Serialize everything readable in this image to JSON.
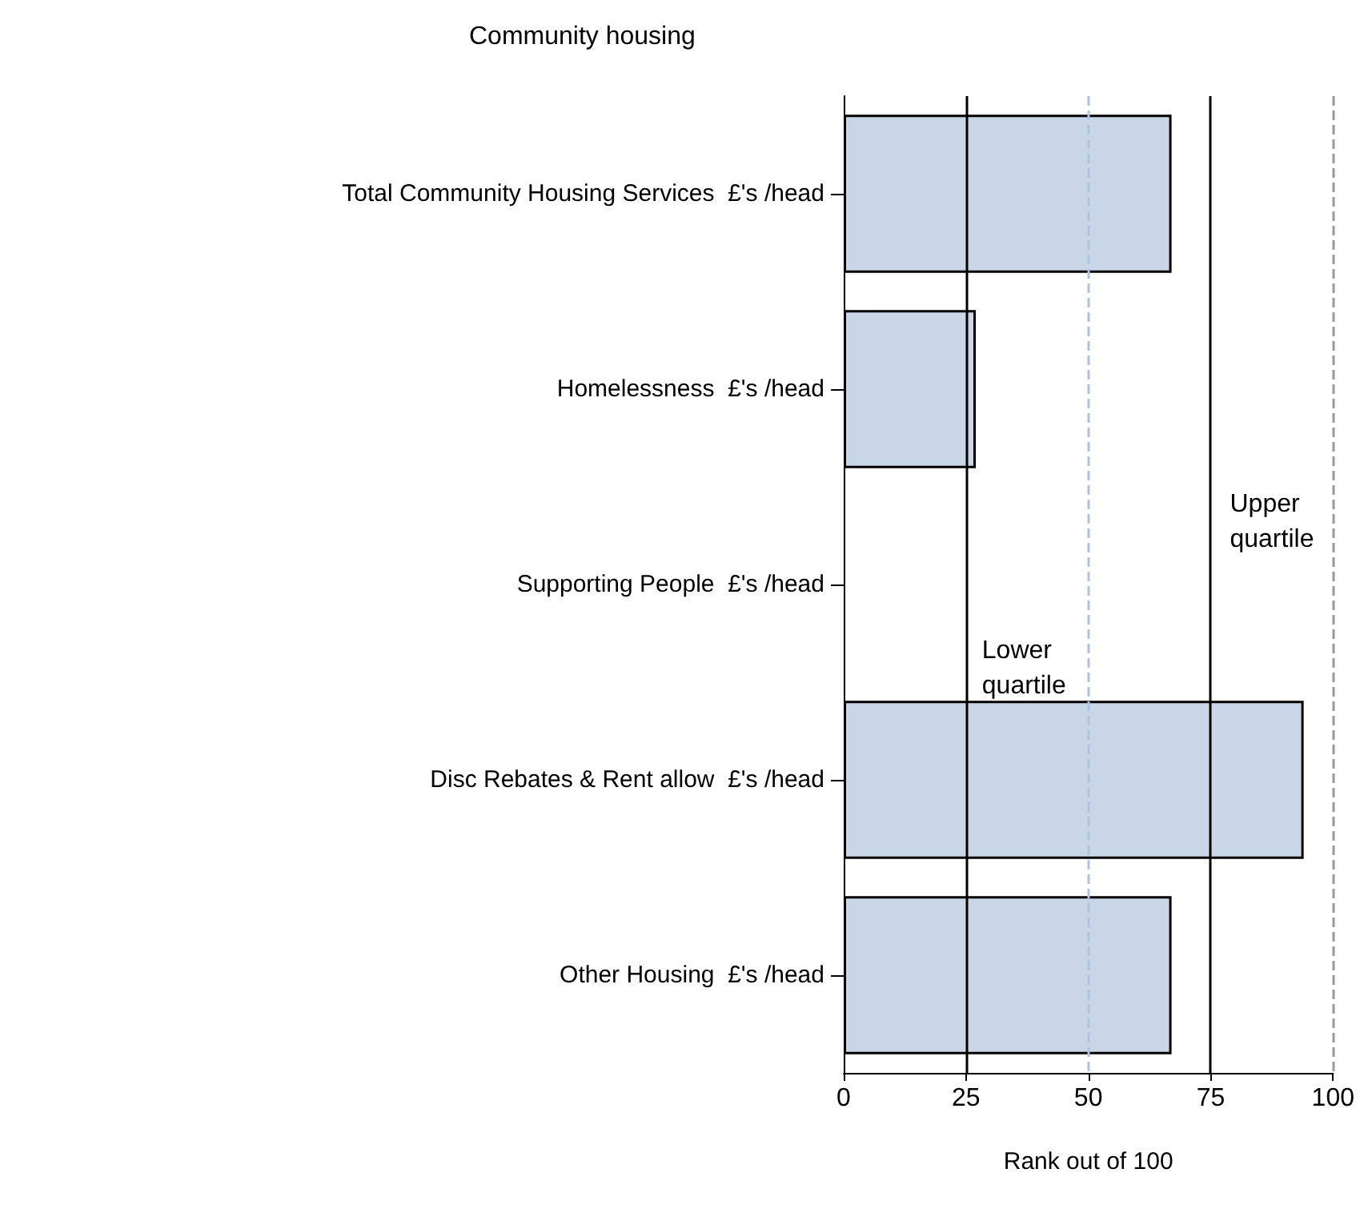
{
  "chart_data": {
    "type": "bar",
    "orientation": "horizontal",
    "title": "Community housing",
    "xlabel": "Rank out of 100",
    "categories": [
      "Total Community Housing Services  £'s /head",
      "Homelessness  £'s /head",
      "Supporting People  £'s /head",
      "Disc Rebates & Rent allow  £'s /head",
      "Other Housing  £'s /head"
    ],
    "values": [
      67,
      27,
      null,
      94,
      67
    ],
    "color": "#c8d6e8",
    "xlim": [
      0,
      100
    ],
    "xticks": [
      0,
      25,
      50,
      75,
      100
    ],
    "grid": false,
    "ref_lines": [
      {
        "axis": "x",
        "value": 25,
        "label": "Lower\nquartile",
        "color": "#000000",
        "line_style": "solid"
      },
      {
        "axis": "x",
        "value": 50,
        "label": null,
        "color": "#b0c4de",
        "line_style": "dashed"
      },
      {
        "axis": "x",
        "value": 75,
        "label": "Upper\nquartile",
        "color": "#000000",
        "line_style": "solid"
      },
      {
        "axis": "x",
        "value": 100,
        "label": null,
        "color": "#999999",
        "line_style": "dashed"
      }
    ]
  }
}
